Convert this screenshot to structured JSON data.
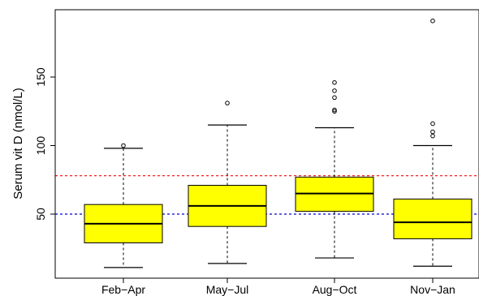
{
  "chart_data": {
    "type": "box",
    "categories": [
      "Feb−Apr",
      "May−Jul",
      "Aug−Oct",
      "Nov−Jan"
    ],
    "ylabel": "Serum vit D (nmol/L)",
    "xlabel": "",
    "ylim": [
      5,
      200
    ],
    "yticks": [
      50,
      100,
      150
    ],
    "box_fill": "#ffff00",
    "boxes": [
      {
        "whisker_low": 11,
        "q1": 29,
        "median": 43,
        "q3": 57,
        "whisker_high": 98,
        "outliers": [
          100
        ]
      },
      {
        "whisker_low": 14,
        "q1": 41,
        "median": 56,
        "q3": 71,
        "whisker_high": 115,
        "outliers": [
          131
        ]
      },
      {
        "whisker_low": 18,
        "q1": 52,
        "median": 65,
        "q3": 77,
        "whisker_high": 113,
        "outliers": [
          125,
          126,
          135,
          140,
          146
        ]
      },
      {
        "whisker_low": 12,
        "q1": 32,
        "median": 44,
        "q3": 61,
        "whisker_high": 100,
        "outliers": [
          107,
          110,
          116,
          191
        ]
      }
    ],
    "reference_lines": [
      {
        "value": 78,
        "color": "#ff0000",
        "style": "dashed"
      },
      {
        "value": 50,
        "color": "#0000cc",
        "style": "dashed"
      }
    ]
  }
}
